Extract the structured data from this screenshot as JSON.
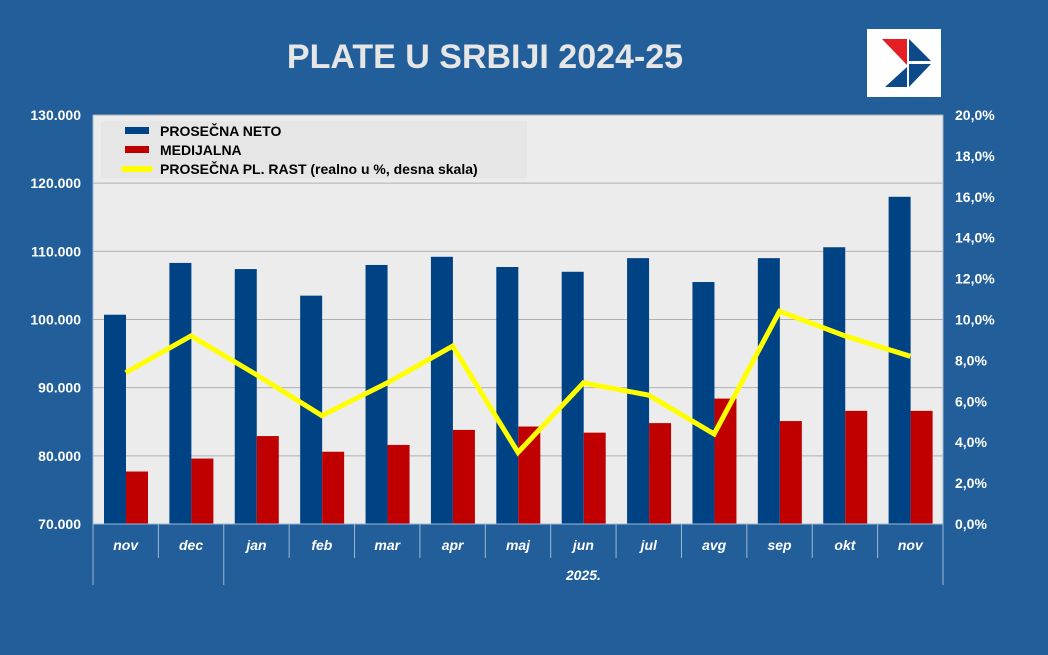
{
  "chart_data": {
    "type": "bar+line",
    "title": "PLATE U SRBIJI 2024-25",
    "categories": [
      "nov",
      "dec",
      "jan",
      "feb",
      "mar",
      "apr",
      "maj",
      "jun",
      "jul",
      "avg",
      "sep",
      "okt",
      "nov"
    ],
    "year_label": "2025.",
    "left_axis": {
      "ylim": [
        70000,
        130000
      ],
      "ticks": [
        "70.000",
        "80.000",
        "90.000",
        "100.000",
        "110.000",
        "120.000",
        "130.000"
      ]
    },
    "right_axis": {
      "ylim": [
        0,
        20
      ],
      "ticks": [
        "0,0%",
        "2,0%",
        "4,0%",
        "6,0%",
        "8,0%",
        "10,0%",
        "12,0%",
        "14,0%",
        "16,0%",
        "18,0%",
        "20,0%"
      ]
    },
    "grid": true,
    "legend_position": "top-left",
    "series": [
      {
        "name": "PROSEČNA NETO",
        "kind": "bar",
        "axis": "left",
        "color": "#004385",
        "values": [
          100700,
          108300,
          107400,
          103500,
          108000,
          109200,
          107700,
          107000,
          109000,
          105500,
          109000,
          110600,
          118000
        ]
      },
      {
        "name": "MEDIJALNA",
        "kind": "bar",
        "axis": "left",
        "color": "#c00000",
        "values": [
          77700,
          79600,
          82900,
          80600,
          81600,
          83800,
          84300,
          83400,
          84800,
          88400,
          85100,
          86600,
          86600
        ]
      },
      {
        "name": "PROSEČNA PL. RAST (realno u %, desna skala)",
        "kind": "line",
        "axis": "right",
        "color": "#ffff00",
        "values": [
          7.4,
          9.2,
          7.3,
          5.3,
          6.9,
          8.7,
          3.5,
          6.9,
          6.3,
          4.4,
          10.4,
          9.2,
          8.2
        ]
      }
    ]
  }
}
